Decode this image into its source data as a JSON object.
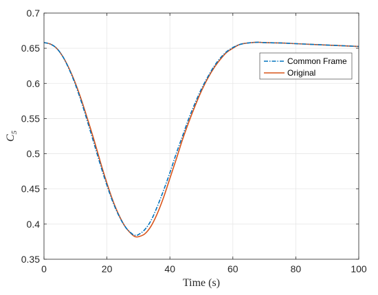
{
  "chart_data": {
    "type": "line",
    "title": "",
    "xlabel": "Time (s)",
    "ylabel": "C",
    "ylabel_subscript": "5",
    "xlim": [
      0,
      100
    ],
    "ylim": [
      0.35,
      0.7
    ],
    "xticks": [
      0,
      20,
      40,
      60,
      80,
      100
    ],
    "yticks": [
      0.35,
      0.4,
      0.45,
      0.5,
      0.55,
      0.6,
      0.65,
      0.7
    ],
    "xtick_labels": [
      "0",
      "20",
      "40",
      "60",
      "80",
      "100"
    ],
    "ytick_labels": [
      "0.35",
      "0.4",
      "0.45",
      "0.5",
      "0.55",
      "0.6",
      "0.65",
      "0.7"
    ],
    "grid": true,
    "legend_position": "top-right",
    "series": [
      {
        "name": "Common Frame",
        "color": "#0072BD",
        "line_style": "dash-dot",
        "x": [
          0,
          2,
          4,
          6,
          8,
          10,
          12,
          14,
          16,
          18,
          20,
          22,
          24,
          26,
          28,
          29,
          30,
          32,
          34,
          36,
          38,
          40,
          42,
          44,
          46,
          48,
          50,
          52,
          54,
          56,
          58,
          60,
          62,
          64,
          66,
          68,
          70,
          75,
          80,
          85,
          90,
          95,
          100
        ],
        "y": [
          0.658,
          0.656,
          0.65,
          0.638,
          0.62,
          0.598,
          0.572,
          0.543,
          0.513,
          0.483,
          0.455,
          0.43,
          0.41,
          0.395,
          0.386,
          0.384,
          0.385,
          0.392,
          0.405,
          0.425,
          0.448,
          0.473,
          0.5,
          0.525,
          0.55,
          0.572,
          0.592,
          0.609,
          0.624,
          0.636,
          0.645,
          0.651,
          0.655,
          0.657,
          0.658,
          0.6585,
          0.658,
          0.6575,
          0.6565,
          0.6555,
          0.6545,
          0.6535,
          0.6525
        ]
      },
      {
        "name": "Original",
        "color": "#D95319",
        "line_style": "solid",
        "x": [
          0,
          2,
          4,
          6,
          8,
          10,
          12,
          14,
          16,
          18,
          20,
          22,
          24,
          26,
          28,
          29,
          30,
          32,
          34,
          36,
          38,
          40,
          42,
          44,
          46,
          48,
          50,
          52,
          54,
          56,
          58,
          60,
          62,
          64,
          66,
          68,
          70,
          75,
          80,
          85,
          90,
          95,
          100
        ],
        "y": [
          0.658,
          0.656,
          0.65,
          0.638,
          0.621,
          0.6,
          0.575,
          0.547,
          0.518,
          0.487,
          0.458,
          0.432,
          0.411,
          0.395,
          0.385,
          0.382,
          0.382,
          0.386,
          0.397,
          0.415,
          0.438,
          0.465,
          0.492,
          0.52,
          0.545,
          0.568,
          0.589,
          0.607,
          0.622,
          0.634,
          0.644,
          0.65,
          0.655,
          0.657,
          0.658,
          0.6585,
          0.658,
          0.6575,
          0.6565,
          0.6555,
          0.6545,
          0.6535,
          0.6525
        ]
      }
    ]
  }
}
